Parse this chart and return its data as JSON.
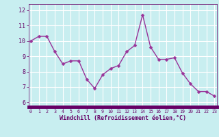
{
  "x_vals": [
    0,
    1,
    2,
    3,
    4,
    5,
    6,
    7,
    8,
    9,
    10,
    11,
    12,
    13,
    14,
    15,
    16,
    17,
    18,
    19,
    20,
    21,
    22,
    23
  ],
  "y_vals": [
    10.0,
    10.3,
    10.3,
    9.3,
    8.5,
    8.7,
    8.7,
    7.5,
    6.9,
    7.8,
    8.2,
    8.4,
    9.3,
    9.7,
    11.7,
    9.6,
    8.8,
    8.8,
    8.9,
    7.9,
    7.2,
    6.7,
    6.7,
    6.4
  ],
  "x_ticks": [
    0,
    1,
    2,
    3,
    4,
    5,
    6,
    7,
    8,
    9,
    10,
    11,
    12,
    13,
    14,
    15,
    16,
    17,
    18,
    19,
    20,
    21,
    22,
    23
  ],
  "y_ticks": [
    6,
    7,
    8,
    9,
    10,
    11,
    12
  ],
  "ylim": [
    5.7,
    12.4
  ],
  "xlim": [
    -0.3,
    23.3
  ],
  "line_color": "#993399",
  "marker_color": "#993399",
  "bg_color": "#c8eef0",
  "grid_color": "#ffffff",
  "xlabel": "Windchill (Refroidissement éolien,°C)",
  "xlabel_color": "#660066",
  "tick_color": "#660066",
  "bar_color": "#660066",
  "marker_size": 2.5,
  "line_width": 1.0
}
